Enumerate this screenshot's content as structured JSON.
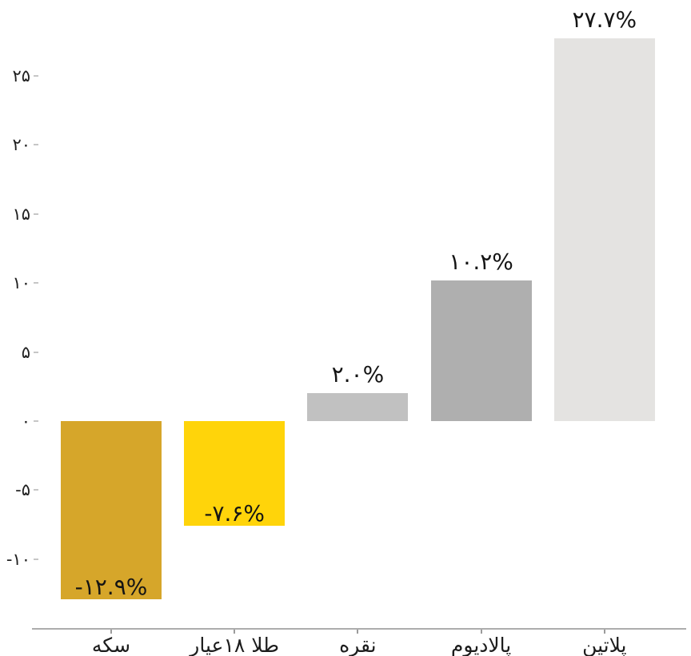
{
  "chart_data": {
    "type": "bar",
    "title": "",
    "xlabel": "",
    "ylabel": "",
    "grid": false,
    "legend": false,
    "ylim": [
      -16,
      29
    ],
    "categories": [
      "سکه",
      "طلا ۱۸عیار",
      "نقره",
      "پالادیوم",
      "پلاتین"
    ],
    "values": [
      -12.9,
      -7.6,
      2.0,
      10.2,
      27.7
    ],
    "value_labels": [
      "-۱۲.۹%",
      "-۷.۶%",
      "۲.۰%",
      "۱۰.۲%",
      "۲۷.۷%"
    ],
    "bar_colors": [
      "#d6a62a",
      "#ffd40a",
      "#c1c1c1",
      "#afafaf",
      "#e4e3e1"
    ],
    "yticks": {
      "values": [
        25,
        20,
        15,
        10,
        5,
        0,
        -5,
        -10
      ],
      "labels": [
        "۲۵",
        "۲۰",
        "۱۵",
        "۱۰",
        "۵",
        "۰",
        "-۵",
        "-۱۰"
      ]
    },
    "colors": {
      "axis_line": "#adadad",
      "tick_mark": "#c6c6c6",
      "label_text": "#141414",
      "background": "#ffffff"
    }
  }
}
